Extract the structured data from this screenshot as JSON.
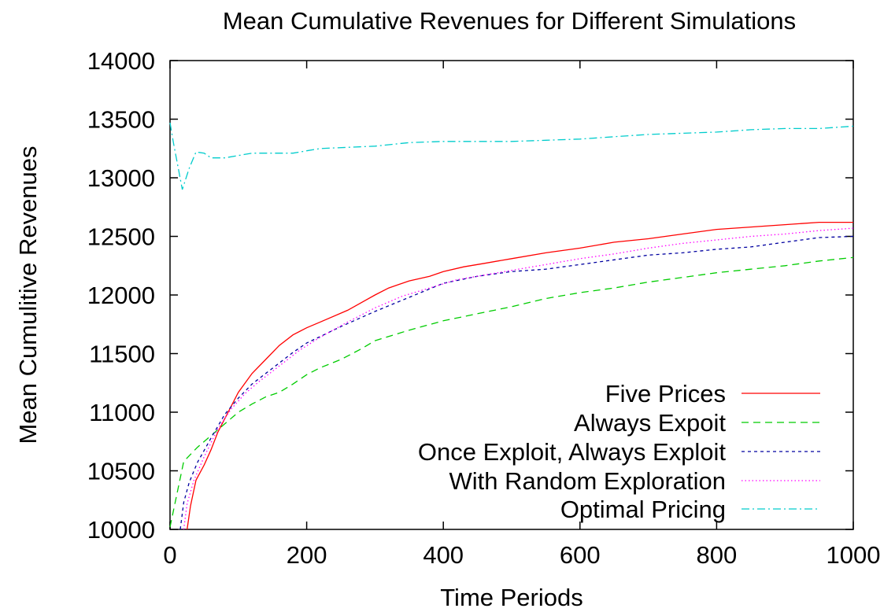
{
  "chart_data": {
    "type": "line",
    "title": "Mean Cumulative Revenues for Different Simulations",
    "xlabel": "Time Periods",
    "ylabel": "Mean Cumulitive Revenues",
    "xlim": [
      0,
      1000
    ],
    "ylim": [
      10000,
      14000
    ],
    "xticks": [
      0,
      200,
      400,
      600,
      800,
      1000
    ],
    "yticks": [
      10000,
      10500,
      11000,
      11500,
      12000,
      12500,
      13000,
      13500,
      14000
    ],
    "grid": false,
    "legend_position": "bottom-right",
    "series": [
      {
        "name": "Five Prices",
        "color": "#ff0000",
        "dash": "",
        "points": [
          [
            25,
            10000
          ],
          [
            30,
            10200
          ],
          [
            38,
            10420
          ],
          [
            50,
            10550
          ],
          [
            60,
            10680
          ],
          [
            70,
            10830
          ],
          [
            85,
            11000
          ],
          [
            100,
            11170
          ],
          [
            120,
            11330
          ],
          [
            140,
            11450
          ],
          [
            160,
            11570
          ],
          [
            180,
            11660
          ],
          [
            200,
            11720
          ],
          [
            220,
            11770
          ],
          [
            260,
            11870
          ],
          [
            300,
            12000
          ],
          [
            320,
            12060
          ],
          [
            350,
            12120
          ],
          [
            380,
            12160
          ],
          [
            400,
            12200
          ],
          [
            430,
            12240
          ],
          [
            460,
            12270
          ],
          [
            500,
            12310
          ],
          [
            550,
            12360
          ],
          [
            600,
            12400
          ],
          [
            650,
            12450
          ],
          [
            700,
            12480
          ],
          [
            750,
            12520
          ],
          [
            800,
            12560
          ],
          [
            850,
            12580
          ],
          [
            900,
            12600
          ],
          [
            950,
            12620
          ],
          [
            1000,
            12620
          ]
        ]
      },
      {
        "name": "Always Expoit",
        "color": "#00cc00",
        "dash": "9 6",
        "points": [
          [
            0,
            10020
          ],
          [
            10,
            10300
          ],
          [
            20,
            10580
          ],
          [
            40,
            10700
          ],
          [
            60,
            10800
          ],
          [
            80,
            10900
          ],
          [
            100,
            11000
          ],
          [
            120,
            11070
          ],
          [
            140,
            11130
          ],
          [
            160,
            11170
          ],
          [
            180,
            11240
          ],
          [
            200,
            11320
          ],
          [
            220,
            11380
          ],
          [
            250,
            11450
          ],
          [
            280,
            11540
          ],
          [
            300,
            11610
          ],
          [
            350,
            11700
          ],
          [
            400,
            11780
          ],
          [
            450,
            11840
          ],
          [
            500,
            11900
          ],
          [
            550,
            11970
          ],
          [
            600,
            12020
          ],
          [
            650,
            12060
          ],
          [
            700,
            12110
          ],
          [
            750,
            12150
          ],
          [
            800,
            12190
          ],
          [
            850,
            12220
          ],
          [
            900,
            12250
          ],
          [
            950,
            12290
          ],
          [
            1000,
            12320
          ]
        ]
      },
      {
        "name": "Once Exploit, Always Exploit",
        "color": "#0000a0",
        "dash": "4 4",
        "points": [
          [
            15,
            10000
          ],
          [
            20,
            10230
          ],
          [
            28,
            10400
          ],
          [
            40,
            10570
          ],
          [
            60,
            10780
          ],
          [
            80,
            10980
          ],
          [
            100,
            11120
          ],
          [
            120,
            11240
          ],
          [
            140,
            11330
          ],
          [
            160,
            11420
          ],
          [
            180,
            11510
          ],
          [
            200,
            11590
          ],
          [
            250,
            11730
          ],
          [
            300,
            11860
          ],
          [
            350,
            11980
          ],
          [
            400,
            12100
          ],
          [
            450,
            12160
          ],
          [
            500,
            12200
          ],
          [
            550,
            12220
          ],
          [
            600,
            12260
          ],
          [
            650,
            12300
          ],
          [
            700,
            12340
          ],
          [
            750,
            12360
          ],
          [
            800,
            12390
          ],
          [
            850,
            12410
          ],
          [
            900,
            12450
          ],
          [
            950,
            12490
          ],
          [
            1000,
            12500
          ]
        ]
      },
      {
        "name": "With Random Exploration",
        "color": "#ff00ff",
        "dash": "1.5 3",
        "points": [
          [
            20,
            10000
          ],
          [
            25,
            10220
          ],
          [
            35,
            10420
          ],
          [
            50,
            10620
          ],
          [
            70,
            10860
          ],
          [
            90,
            11030
          ],
          [
            110,
            11160
          ],
          [
            130,
            11260
          ],
          [
            150,
            11350
          ],
          [
            170,
            11440
          ],
          [
            190,
            11530
          ],
          [
            220,
            11640
          ],
          [
            260,
            11770
          ],
          [
            300,
            11890
          ],
          [
            340,
            11990
          ],
          [
            380,
            12060
          ],
          [
            420,
            12130
          ],
          [
            460,
            12170
          ],
          [
            500,
            12210
          ],
          [
            550,
            12260
          ],
          [
            600,
            12310
          ],
          [
            650,
            12350
          ],
          [
            700,
            12400
          ],
          [
            750,
            12440
          ],
          [
            800,
            12470
          ],
          [
            850,
            12500
          ],
          [
            900,
            12520
          ],
          [
            950,
            12550
          ],
          [
            1000,
            12570
          ]
        ]
      },
      {
        "name": "Optimal Pricing",
        "color": "#00cccc",
        "dash": "10 4 2 4",
        "points": [
          [
            0,
            13470
          ],
          [
            5,
            13300
          ],
          [
            18,
            12900
          ],
          [
            28,
            13080
          ],
          [
            38,
            13220
          ],
          [
            50,
            13210
          ],
          [
            60,
            13170
          ],
          [
            80,
            13170
          ],
          [
            100,
            13190
          ],
          [
            120,
            13210
          ],
          [
            160,
            13210
          ],
          [
            180,
            13210
          ],
          [
            200,
            13230
          ],
          [
            220,
            13250
          ],
          [
            260,
            13260
          ],
          [
            300,
            13270
          ],
          [
            350,
            13300
          ],
          [
            400,
            13310
          ],
          [
            450,
            13310
          ],
          [
            500,
            13310
          ],
          [
            550,
            13320
          ],
          [
            600,
            13330
          ],
          [
            650,
            13350
          ],
          [
            700,
            13370
          ],
          [
            750,
            13380
          ],
          [
            800,
            13390
          ],
          [
            850,
            13410
          ],
          [
            900,
            13420
          ],
          [
            950,
            13420
          ],
          [
            1000,
            13440
          ]
        ]
      }
    ]
  }
}
